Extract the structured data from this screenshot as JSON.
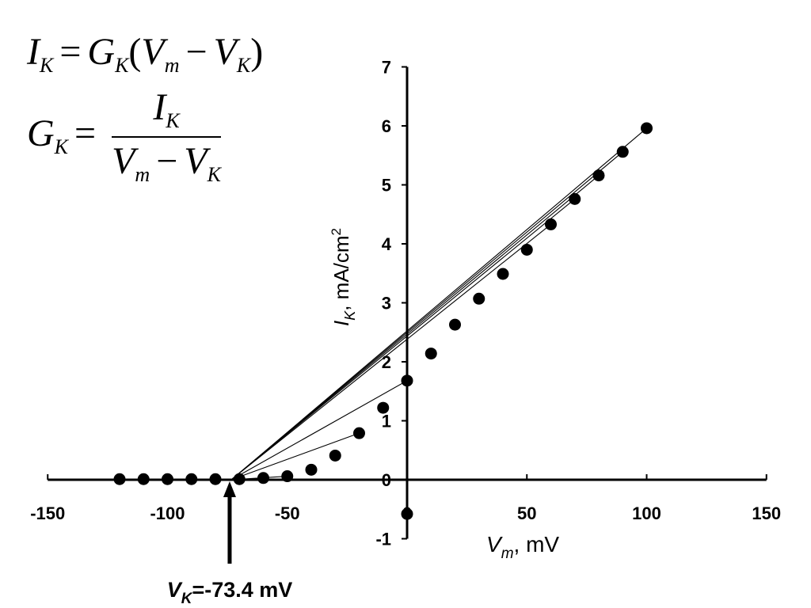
{
  "equations": {
    "current": {
      "lhs": "I",
      "lhs_sub": "K",
      "eq": "=",
      "rhs_g": "G",
      "rhs_g_sub": "K",
      "open": "(",
      "vm": "V",
      "vm_sub": "m",
      "minus": "−",
      "vk": "V",
      "vk_sub": "K",
      "close": ")"
    },
    "conductance": {
      "lhs": "G",
      "lhs_sub": "K",
      "eq": "=",
      "num": "I",
      "num_sub": "K",
      "den_vm": "V",
      "den_vm_sub": "m",
      "den_minus": "−",
      "den_vk": "V",
      "den_vk_sub": "K"
    }
  },
  "annotation": {
    "vk_label_main": "V",
    "vk_label_sub": "K",
    "vk_label_rest": "=-73.4 mV"
  },
  "chart_data": {
    "type": "scatter",
    "xlabel_main": "V",
    "xlabel_sub": "m",
    "xlabel_rest": ", mV",
    "ylabel_main": "I",
    "ylabel_sub": "K",
    "ylabel_rest": ", mA/cm",
    "ylabel_sup": "2",
    "xlim": [
      -150,
      150
    ],
    "ylim": [
      -1,
      7
    ],
    "xticks": [
      -150,
      -100,
      -50,
      0,
      50,
      100,
      150
    ],
    "yticks": [
      -1,
      0,
      1,
      2,
      3,
      4,
      5,
      6,
      7
    ],
    "grid": false,
    "points": {
      "x": [
        -120,
        -110,
        -100,
        -90,
        -80,
        -70,
        -60,
        -50,
        -40,
        -30,
        -20,
        -10,
        0,
        0,
        10,
        20,
        30,
        40,
        50,
        60,
        70,
        80,
        90,
        100
      ],
      "y": [
        0.01,
        0.01,
        0.01,
        0.01,
        0.01,
        0.01,
        0.03,
        0.06,
        0.17,
        0.41,
        0.79,
        1.22,
        1.68,
        -0.58,
        2.14,
        2.63,
        3.07,
        3.49,
        3.9,
        4.33,
        4.76,
        5.16,
        5.56,
        5.96
      ]
    },
    "chord_lines": [
      {
        "from": [
          -73.4,
          0
        ],
        "to": [
          -50,
          0.06
        ]
      },
      {
        "from": [
          -73.4,
          0
        ],
        "to": [
          -20,
          0.79
        ]
      },
      {
        "from": [
          -73.4,
          0
        ],
        "to": [
          0,
          1.68
        ]
      },
      {
        "from": [
          -73.4,
          0
        ],
        "to": [
          60,
          4.33
        ]
      },
      {
        "from": [
          -73.4,
          0
        ],
        "to": [
          70,
          4.76
        ]
      },
      {
        "from": [
          -73.4,
          0
        ],
        "to": [
          80,
          5.16
        ]
      },
      {
        "from": [
          -73.4,
          0
        ],
        "to": [
          90,
          5.56
        ]
      },
      {
        "from": [
          -73.4,
          0
        ],
        "to": [
          100,
          5.96
        ]
      }
    ],
    "vk_value": -73.4
  }
}
